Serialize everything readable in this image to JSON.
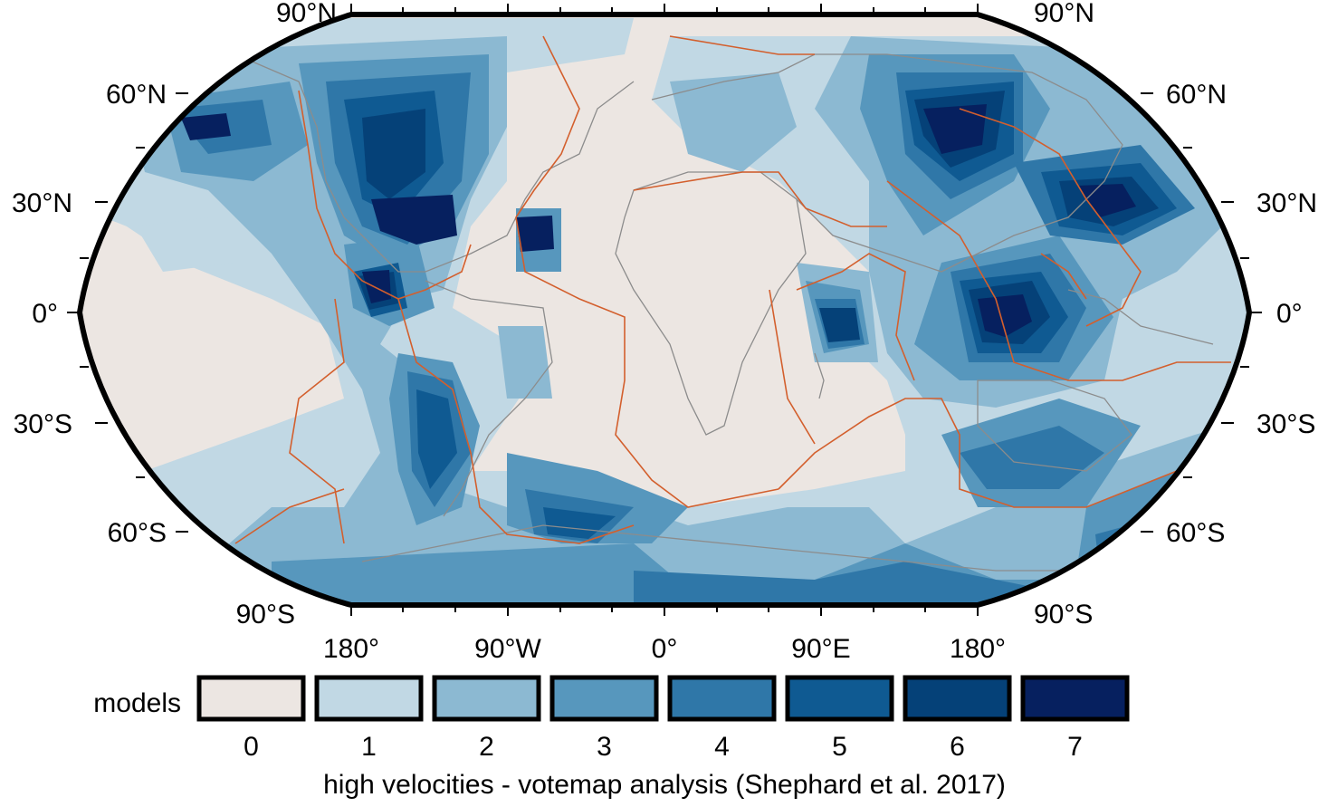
{
  "map": {
    "projection": "Robinson",
    "lat_labels_left": [
      "90°N",
      "60°N",
      "30°N",
      "0°",
      "30°S",
      "60°S",
      "90°S"
    ],
    "lat_labels_right": [
      "90°N",
      "60°N",
      "30°N",
      "0°",
      "30°S",
      "60°S",
      "90°S"
    ],
    "lon_labels": [
      "180°",
      "90°W",
      "0°",
      "90°E",
      "180°"
    ]
  },
  "legend": {
    "label": "models",
    "classes": [
      {
        "value": "0",
        "color": "#ece6e2"
      },
      {
        "value": "1",
        "color": "#c1d8e4"
      },
      {
        "value": "2",
        "color": "#8cb9d2"
      },
      {
        "value": "3",
        "color": "#5797bd"
      },
      {
        "value": "4",
        "color": "#2f77a8"
      },
      {
        "value": "5",
        "color": "#0f5a92"
      },
      {
        "value": "6",
        "color": "#054178"
      },
      {
        "value": "7",
        "color": "#06205f"
      }
    ],
    "caption": "high velocities - votemap analysis (Shephard et al. 2017)"
  },
  "colors": {
    "plate_boundaries": "#d35f2d",
    "coastlines": "#8c8c8c",
    "ocean_base": "#ece6e2"
  }
}
